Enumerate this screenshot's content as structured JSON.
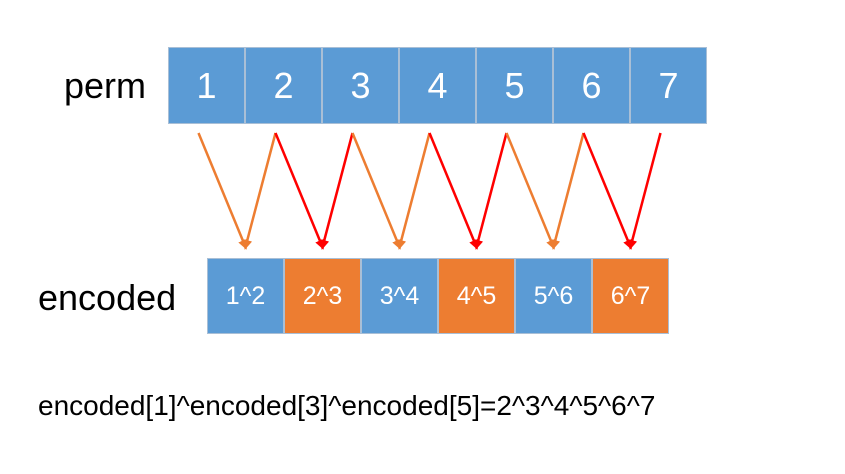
{
  "perm_label": "perm",
  "encoded_label": "encoded",
  "perm": [
    "1",
    "2",
    "3",
    "4",
    "5",
    "6",
    "7"
  ],
  "encoded": [
    "1^2",
    "2^3",
    "3^4",
    "4^5",
    "5^6",
    "6^7"
  ],
  "formula": "encoded[1]^encoded[3]^encoded[5]=2^3^4^5^6^7",
  "colors": {
    "blue": "#5b9bd5",
    "orange": "#ed7d31",
    "red": "#ff0000",
    "arrow_orange": "#ed7d31"
  }
}
